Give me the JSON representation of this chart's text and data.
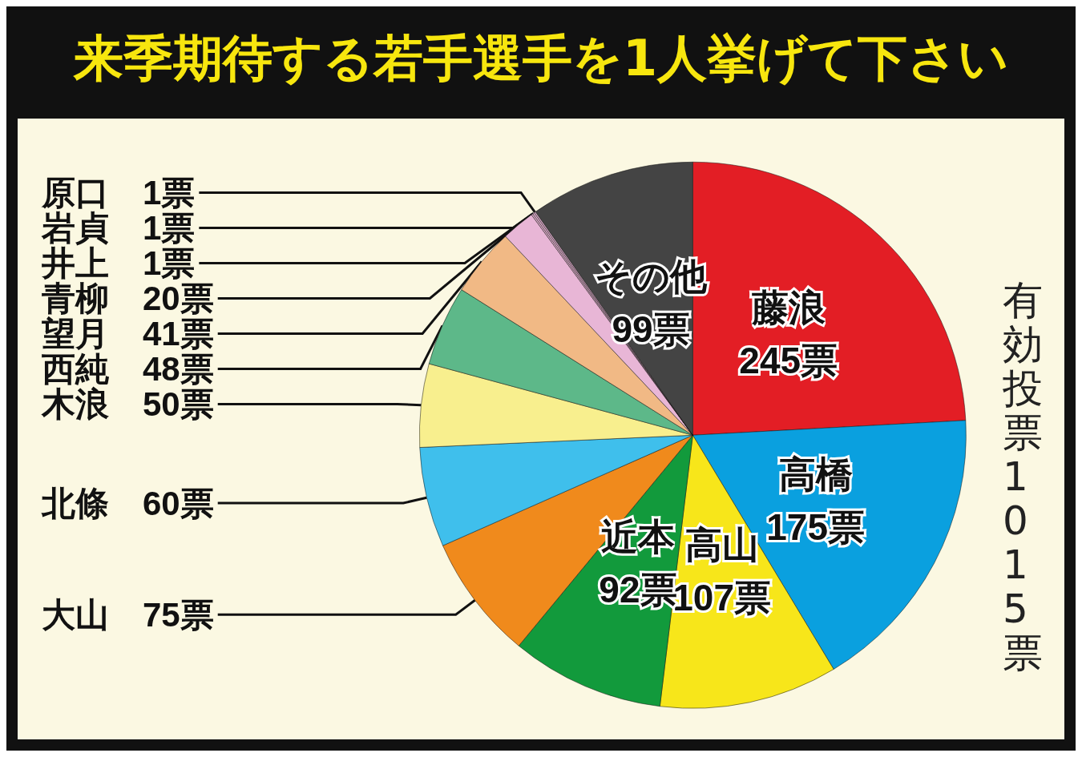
{
  "chart_data": {
    "type": "pie",
    "title": "来季期待する若手選手を1人挙げて下さい",
    "categories": [
      "藤浪",
      "高橋",
      "高山",
      "近本",
      "大山",
      "北條",
      "木浪",
      "西純",
      "望月",
      "青柳",
      "井上",
      "岩貞",
      "原口",
      "その他"
    ],
    "values": [
      245,
      175,
      107,
      92,
      75,
      60,
      50,
      48,
      41,
      20,
      1,
      1,
      1,
      99
    ],
    "value_labels": [
      "245票",
      "175票",
      "107票",
      "92票",
      "75票",
      "60票",
      "50票",
      "48票",
      "41票",
      "20票",
      "1票",
      "1票",
      "1票",
      "99票"
    ],
    "colors": [
      "#e31e25",
      "#0aa0df",
      "#f7e61a",
      "#129a3c",
      "#f08a1c",
      "#3fbfec",
      "#f8ef8e",
      "#5db889",
      "#f1b985",
      "#e8b6d6",
      "#d9a9c6",
      "#e2b0cf",
      "#cfa3c0",
      "#444444"
    ],
    "annotations": [
      "有効投票1015票"
    ],
    "legend": false
  }
}
